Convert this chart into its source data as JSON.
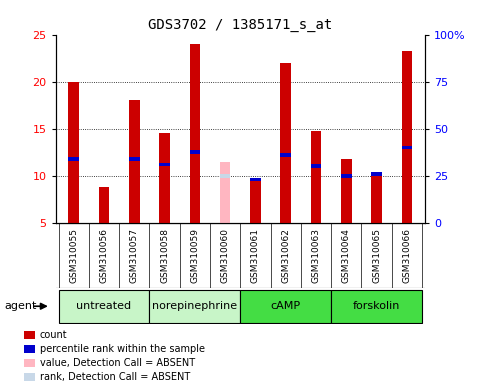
{
  "title": "GDS3702 / 1385171_s_at",
  "samples": [
    "GSM310055",
    "GSM310056",
    "GSM310057",
    "GSM310058",
    "GSM310059",
    "GSM310060",
    "GSM310061",
    "GSM310062",
    "GSM310063",
    "GSM310064",
    "GSM310065",
    "GSM310066"
  ],
  "count_values": [
    20.0,
    8.8,
    18.0,
    14.5,
    24.0,
    null,
    9.5,
    22.0,
    14.8,
    11.8,
    10.2,
    23.2
  ],
  "percentile_values": [
    11.8,
    null,
    11.8,
    11.2,
    12.5,
    null,
    9.6,
    12.2,
    11.0,
    10.0,
    10.2,
    13.0
  ],
  "absent_value_values": [
    null,
    null,
    null,
    null,
    null,
    11.5,
    null,
    null,
    null,
    null,
    null,
    null
  ],
  "absent_rank_values": [
    null,
    null,
    null,
    null,
    null,
    10.0,
    null,
    null,
    null,
    null,
    null,
    null
  ],
  "ylim_left": [
    5,
    25
  ],
  "ylim_right": [
    0,
    100
  ],
  "yticks_left": [
    5,
    10,
    15,
    20,
    25
  ],
  "yticks_right": [
    0,
    25,
    50,
    75,
    100
  ],
  "ytick_labels_right": [
    "0",
    "25",
    "50",
    "75",
    "100%"
  ],
  "groups": [
    {
      "label": "untreated",
      "indices": [
        0,
        1,
        2
      ],
      "color": "#C8F5C8"
    },
    {
      "label": "norepinephrine",
      "indices": [
        3,
        4,
        5
      ],
      "color": "#C8F5C8"
    },
    {
      "label": "cAMP",
      "indices": [
        6,
        7,
        8
      ],
      "color": "#44DD44"
    },
    {
      "label": "forskolin",
      "indices": [
        9,
        10,
        11
      ],
      "color": "#44DD44"
    }
  ],
  "bar_width": 0.35,
  "count_color": "#CC0000",
  "percentile_color": "#0000CC",
  "absent_value_color": "#FFB6C1",
  "absent_rank_color": "#C8D8E8",
  "bg_color_plot": "#FFFFFF",
  "bg_color_sample": "#D3D3D3",
  "title_fontsize": 10,
  "sample_fontsize": 6.5,
  "group_fontsize": 8,
  "legend_fontsize": 7,
  "agent_label": "agent"
}
